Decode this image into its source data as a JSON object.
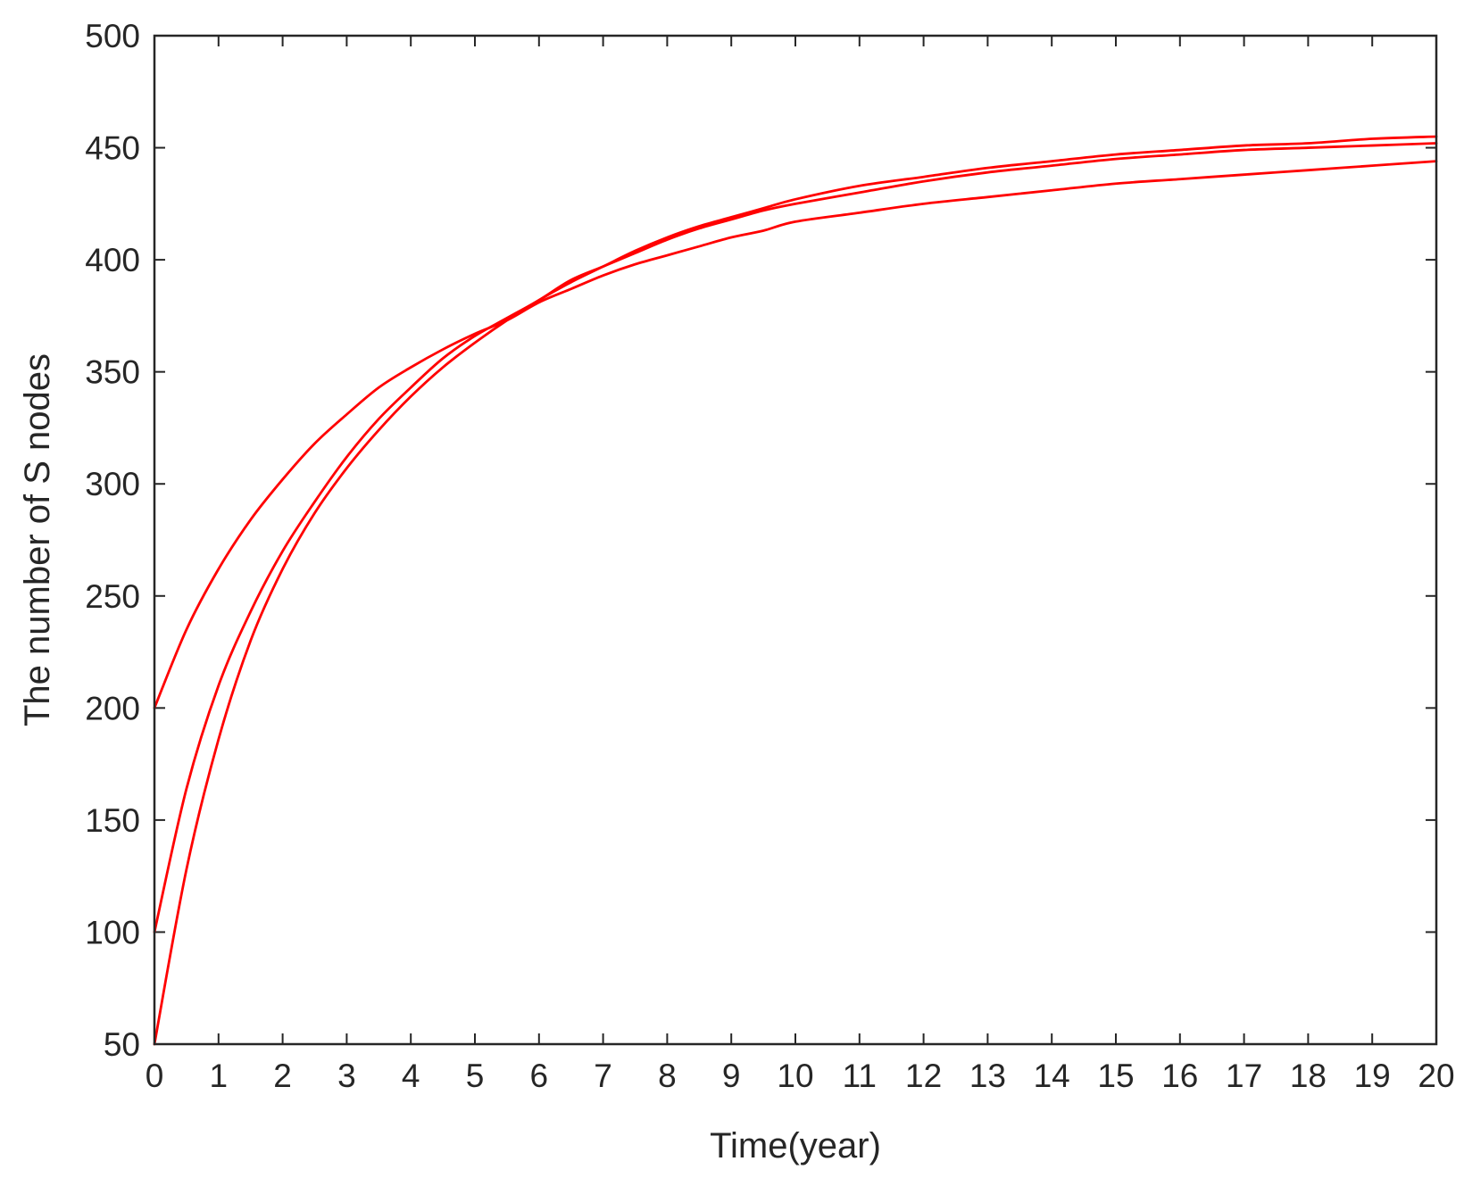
{
  "chart_data": {
    "type": "line",
    "title": "",
    "xlabel": "Time(year)",
    "ylabel": "The number of S nodes",
    "xlim": [
      0,
      20
    ],
    "ylim": [
      50,
      500
    ],
    "xticks": [
      0,
      1,
      2,
      3,
      4,
      5,
      6,
      7,
      8,
      9,
      10,
      11,
      12,
      13,
      14,
      15,
      16,
      17,
      18,
      19,
      20
    ],
    "yticks": [
      50,
      100,
      150,
      200,
      250,
      300,
      350,
      400,
      450,
      500
    ],
    "grid": false,
    "legend": "none",
    "line_color": "#ff0000",
    "axis_color": "#262626",
    "series": [
      {
        "x": [
          0,
          0.5,
          1,
          1.5,
          2,
          2.5,
          3,
          3.5,
          4,
          4.5,
          5,
          5.5,
          6,
          6.5,
          7,
          7.5,
          8,
          8.5,
          9,
          9.5,
          10,
          11,
          12,
          13,
          14,
          15,
          16,
          17,
          18,
          19,
          20
        ],
        "values": [
          200,
          235,
          262,
          284,
          302,
          318,
          331,
          343,
          352,
          360,
          367,
          373,
          381,
          387,
          393,
          398,
          402,
          406,
          410,
          413,
          417,
          421,
          425,
          428,
          431,
          434,
          436,
          438,
          440,
          442,
          444
        ]
      },
      {
        "x": [
          0,
          0.5,
          1,
          1.5,
          2,
          2.5,
          3,
          3.5,
          4,
          4.5,
          5,
          5.5,
          6,
          6.5,
          7,
          7.5,
          8,
          8.5,
          9,
          9.5,
          10,
          11,
          12,
          13,
          14,
          15,
          16,
          17,
          18,
          19,
          20
        ],
        "values": [
          100,
          164,
          210,
          243,
          270,
          292,
          312,
          329,
          343,
          356,
          366,
          374,
          382,
          391,
          397,
          403,
          409,
          414,
          418,
          422,
          425,
          430,
          435,
          439,
          442,
          445,
          447,
          449,
          450,
          451,
          452
        ]
      },
      {
        "x": [
          0,
          0.5,
          1,
          1.5,
          2,
          2.5,
          3,
          3.5,
          4,
          4.5,
          5,
          5.5,
          6,
          6.5,
          7,
          7.5,
          8,
          8.5,
          9,
          9.5,
          10,
          11,
          12,
          13,
          14,
          15,
          16,
          17,
          18,
          19,
          20
        ],
        "values": [
          50,
          128,
          186,
          230,
          262,
          287,
          307,
          324,
          339,
          352,
          363,
          373,
          382,
          390,
          397,
          404,
          410,
          415,
          419,
          423,
          427,
          433,
          437,
          441,
          444,
          447,
          449,
          451,
          452,
          454,
          455
        ]
      }
    ]
  }
}
